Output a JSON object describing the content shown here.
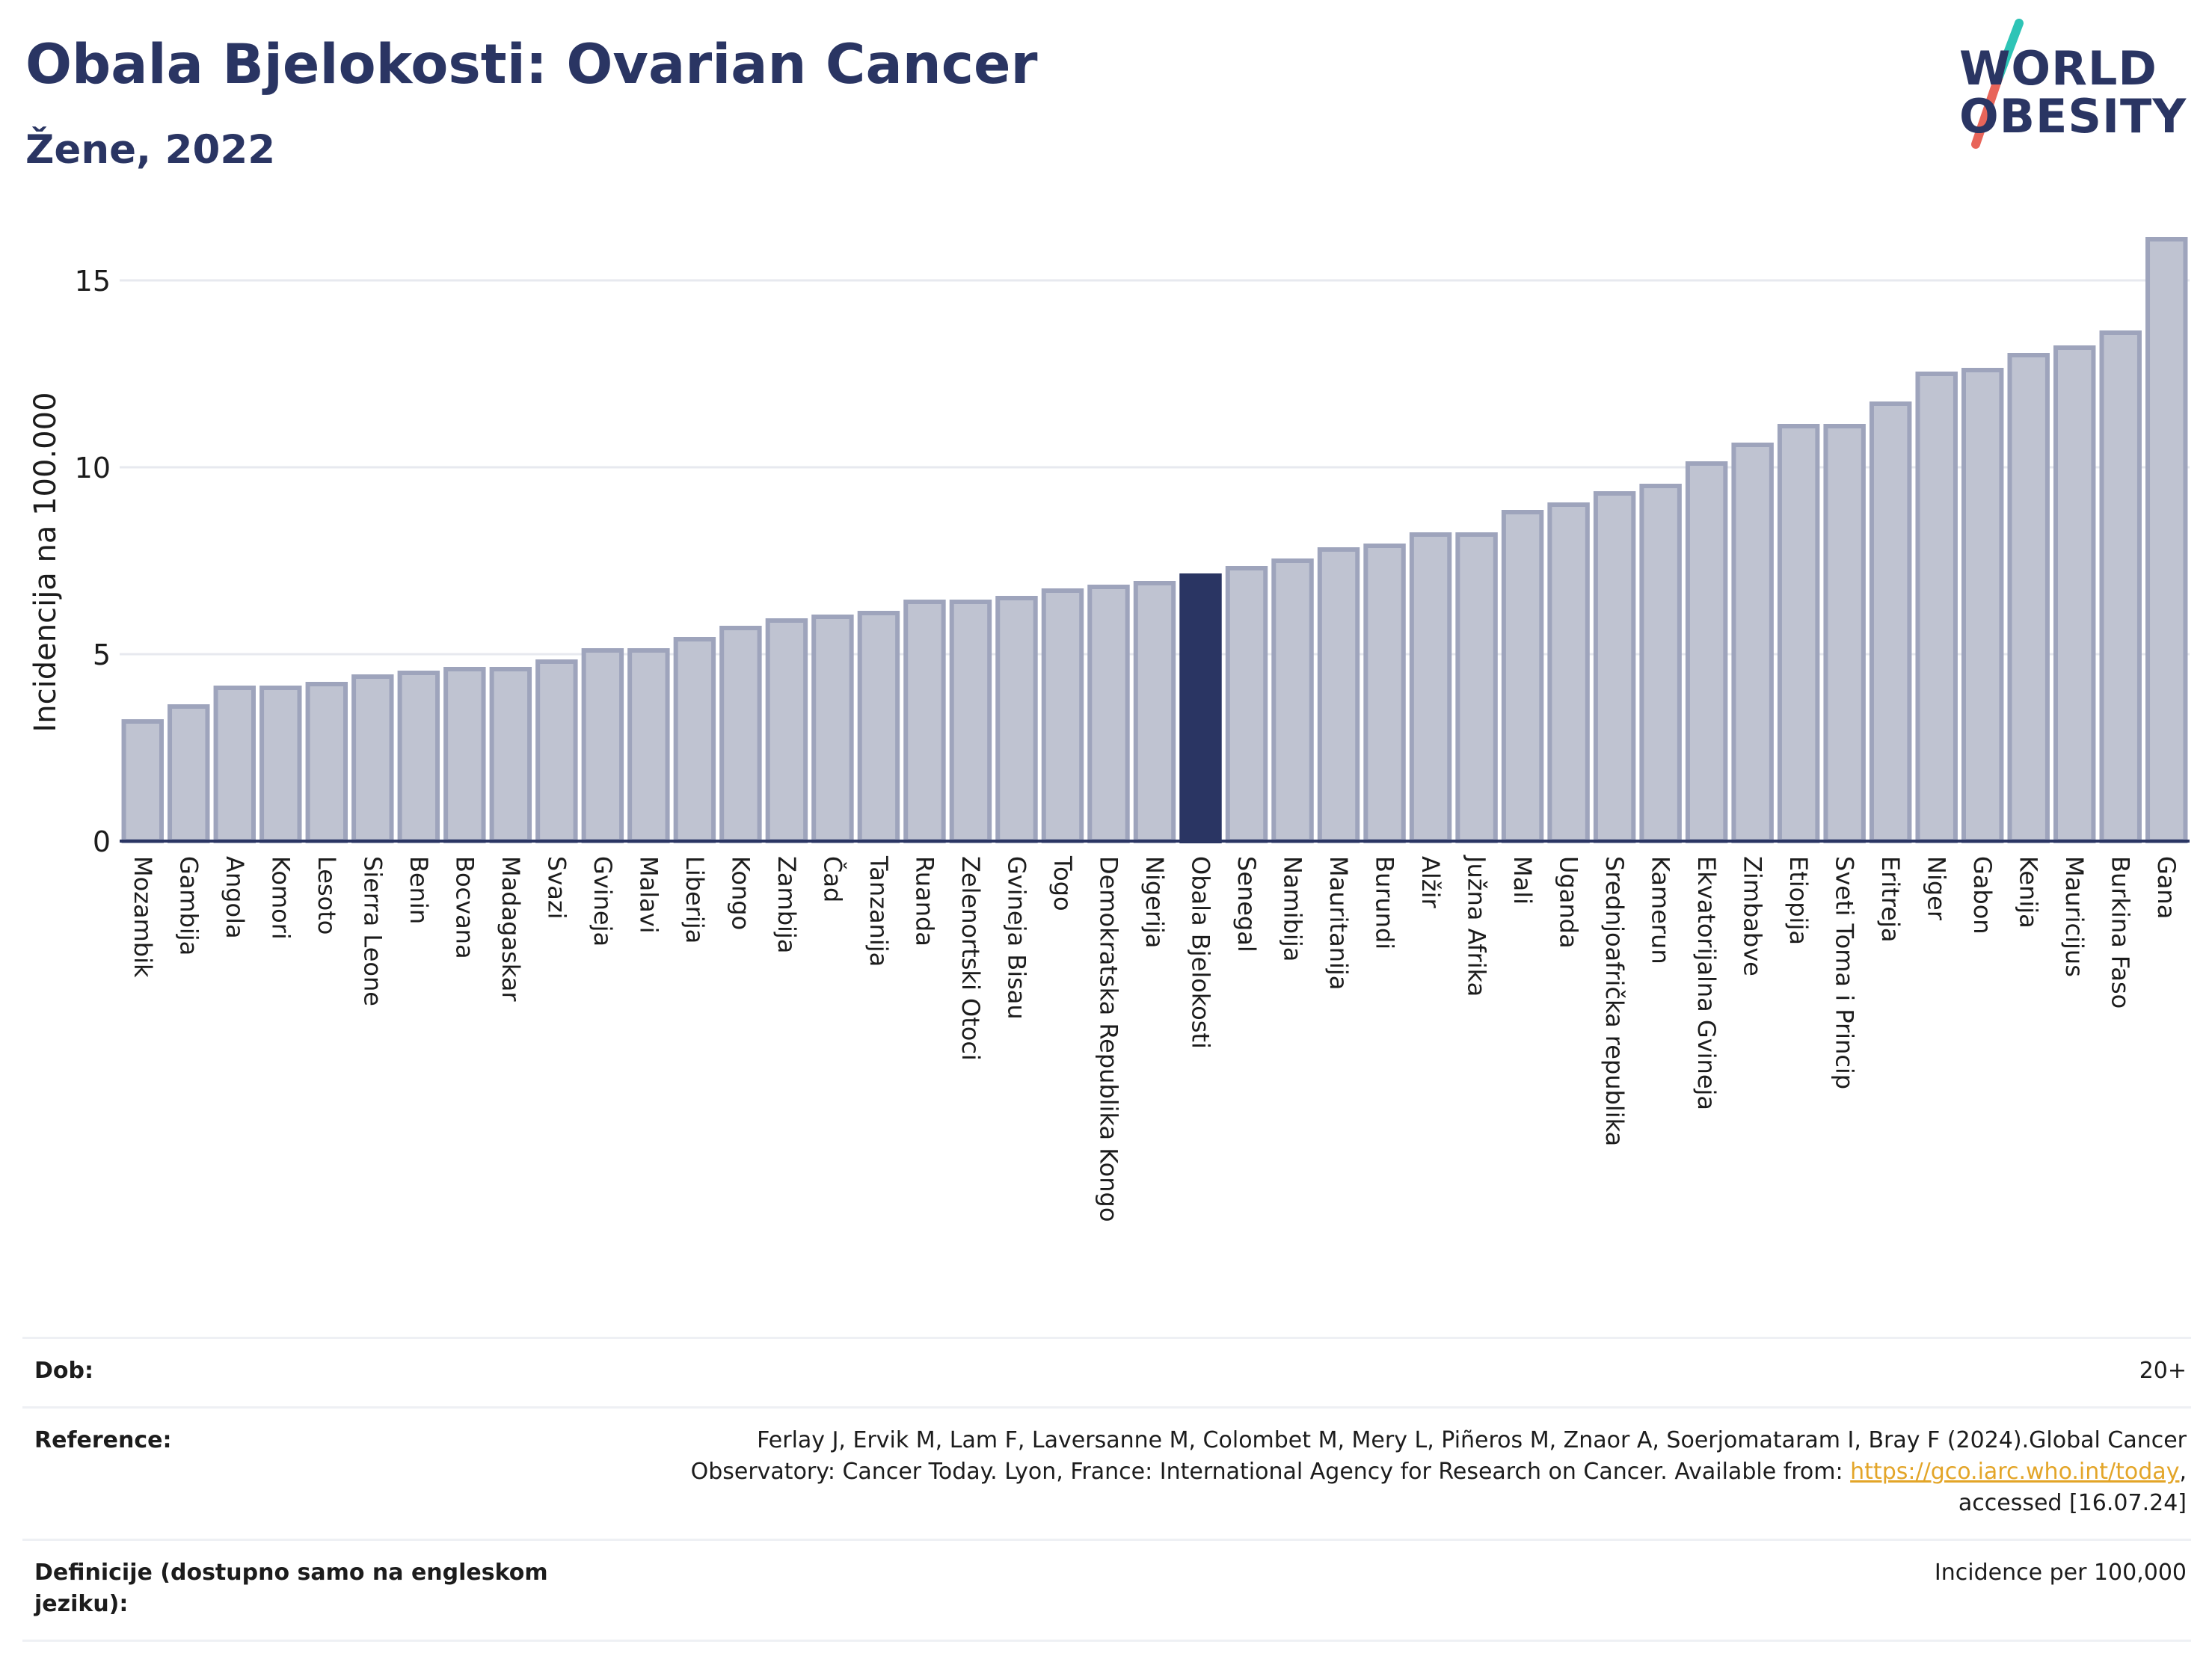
{
  "header": {
    "title": "Obala Bjelokosti: Ovarian Cancer",
    "subtitle": "Žene, 2022"
  },
  "logo": {
    "line1": "WORLD",
    "line2": "OBESITY",
    "colors": {
      "text": "#2a3563",
      "slash_top": "#2ec4b6",
      "slash_bottom": "#e8655a"
    }
  },
  "colors": {
    "bar": "#bfc3d1",
    "bar_border": "#9ea4bc",
    "highlight": "#2a3563",
    "grid": "#e7e9ef",
    "axis": "#2a3563"
  },
  "chart_data": {
    "type": "bar",
    "ylabel": "Incidencija na 100.000",
    "ylim": [
      0,
      16.5
    ],
    "yticks": [
      0,
      5,
      10,
      15
    ],
    "grid": true,
    "highlight": "Obala Bjelokosti",
    "categories": [
      "Mozambik",
      "Gambija",
      "Angola",
      "Komori",
      "Lesoto",
      "Sierra Leone",
      "Benin",
      "Bocvana",
      "Madagaskar",
      "Svazi",
      "Gvineja",
      "Malavi",
      "Liberija",
      "Kongo",
      "Zambija",
      "Čad",
      "Tanzanija",
      "Ruanda",
      "Zelenortski Otoci",
      "Gvineja Bisau",
      "Togo",
      "Demokratska Republika Kongo",
      "Nigerija",
      "Obala Bjelokosti",
      "Senegal",
      "Namibija",
      "Mauritanija",
      "Burundi",
      "Alžir",
      "Južna Afrika",
      "Mali",
      "Uganda",
      "Srednjoafrička republika",
      "Kamerun",
      "Ekvatorijalna Gvineja",
      "Zimbabve",
      "Etiopija",
      "Sveti Toma i Princip",
      "Eritreja",
      "Niger",
      "Gabon",
      "Kenija",
      "Mauricijus",
      "Burkina Faso",
      "Gana"
    ],
    "values": [
      3.2,
      3.6,
      4.1,
      4.1,
      4.2,
      4.4,
      4.5,
      4.6,
      4.6,
      4.8,
      5.1,
      5.1,
      5.4,
      5.7,
      5.9,
      6.0,
      6.1,
      6.4,
      6.4,
      6.5,
      6.7,
      6.8,
      6.9,
      7.1,
      7.3,
      7.5,
      7.8,
      7.9,
      8.2,
      8.2,
      8.8,
      9.0,
      9.3,
      9.5,
      10.1,
      10.6,
      11.1,
      11.1,
      11.7,
      12.5,
      12.6,
      13.0,
      13.2,
      13.6,
      16.1
    ]
  },
  "footer": {
    "age_label": "Dob:",
    "age_value": "20+",
    "reference_label": "Reference:",
    "reference_text_1": "Ferlay J, Ervik M, Lam F, Laversanne M, Colombet M, Mery L, Piñeros M, Znaor A, Soerjomataram I, Bray F (2024).Global Cancer Observatory: Cancer Today. Lyon, France: International Agency for Research on Cancer. Available from: ",
    "reference_link": "https://gco.iarc.who.int/today",
    "reference_text_2": ", accessed [16.07.24]",
    "definitions_label": "Definicije (dostupno samo na engleskom jeziku):",
    "definitions_value": "Incidence per 100,000"
  }
}
